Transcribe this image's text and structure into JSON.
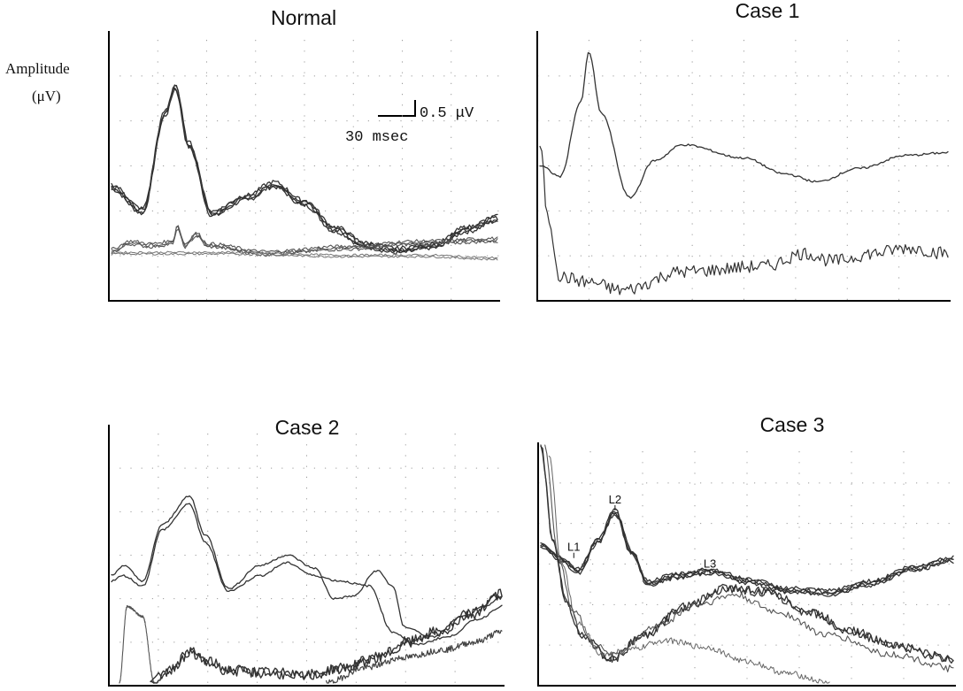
{
  "y_label": {
    "line1": "Amplitude",
    "line2": "(μV)"
  },
  "scale_bar": {
    "amplitude": "0.5  μV",
    "time": "30 msec"
  },
  "chart_data": [
    {
      "type": "line",
      "title": "Normal",
      "xlim": [
        0,
        1
      ],
      "ylim": [
        0,
        1
      ],
      "grid": true,
      "series": [
        {
          "points": [
            [
              0,
              0.42
            ],
            [
              0.08,
              0.33
            ],
            [
              0.14,
              0.7
            ],
            [
              0.165,
              0.8
            ],
            [
              0.2,
              0.58
            ],
            [
              0.26,
              0.32
            ],
            [
              0.35,
              0.38
            ],
            [
              0.42,
              0.43
            ],
            [
              0.5,
              0.36
            ],
            [
              0.58,
              0.26
            ],
            [
              0.66,
              0.2
            ],
            [
              0.74,
              0.18
            ],
            [
              0.84,
              0.2
            ],
            [
              0.92,
              0.26
            ],
            [
              1,
              0.3
            ]
          ],
          "noise": 0.008,
          "copies": 4,
          "color": "#333",
          "width": 1.3
        },
        {
          "points": [
            [
              0,
              0.18
            ],
            [
              0.05,
              0.21
            ],
            [
              0.1,
              0.2
            ],
            [
              0.16,
              0.21
            ],
            [
              0.17,
              0.27
            ],
            [
              0.19,
              0.2
            ],
            [
              0.22,
              0.24
            ],
            [
              0.25,
              0.2
            ],
            [
              0.4,
              0.17
            ],
            [
              0.6,
              0.19
            ],
            [
              0.8,
              0.21
            ],
            [
              1,
              0.22
            ]
          ],
          "noise": 0.006,
          "copies": 3,
          "color": "#555",
          "width": 1.1
        },
        {
          "points": [
            [
              0,
              0.17
            ],
            [
              0.3,
              0.17
            ],
            [
              0.6,
              0.16
            ],
            [
              0.8,
              0.16
            ],
            [
              1,
              0.15
            ]
          ],
          "noise": 0.004,
          "copies": 2,
          "color": "#777",
          "width": 1.0
        }
      ]
    },
    {
      "type": "line",
      "title": "Case 1",
      "xlim": [
        0,
        1
      ],
      "ylim": [
        0,
        1
      ],
      "grid": true,
      "series": [
        {
          "points": [
            [
              0,
              0.5
            ],
            [
              0.05,
              0.46
            ],
            [
              0.1,
              0.74
            ],
            [
              0.12,
              0.93
            ],
            [
              0.15,
              0.7
            ],
            [
              0.22,
              0.38
            ],
            [
              0.28,
              0.52
            ],
            [
              0.35,
              0.58
            ],
            [
              0.5,
              0.53
            ],
            [
              0.6,
              0.47
            ],
            [
              0.68,
              0.44
            ],
            [
              0.78,
              0.49
            ],
            [
              0.9,
              0.54
            ],
            [
              1,
              0.55
            ]
          ],
          "noise": 0.004,
          "copies": 1,
          "color": "#333",
          "width": 1.3
        },
        {
          "points": [
            [
              0,
              0.58
            ],
            [
              0.02,
              0.3
            ],
            [
              0.05,
              0.08
            ],
            [
              0.12,
              0.06
            ],
            [
              0.2,
              0.03
            ],
            [
              0.35,
              0.1
            ],
            [
              0.55,
              0.12
            ],
            [
              0.65,
              0.17
            ],
            [
              0.72,
              0.14
            ],
            [
              0.82,
              0.17
            ],
            [
              0.9,
              0.19
            ],
            [
              1,
              0.17
            ]
          ],
          "noise": 0.025,
          "copies": 1,
          "color": "#333",
          "width": 1.2
        }
      ]
    },
    {
      "type": "line",
      "title": "Case 2",
      "xlim": [
        0,
        1
      ],
      "ylim": [
        0,
        1
      ],
      "grid": true,
      "series": [
        {
          "points": [
            [
              0,
              0.42
            ],
            [
              0.03,
              0.46
            ],
            [
              0.08,
              0.4
            ],
            [
              0.13,
              0.62
            ],
            [
              0.2,
              0.73
            ],
            [
              0.24,
              0.58
            ],
            [
              0.3,
              0.37
            ],
            [
              0.38,
              0.46
            ],
            [
              0.45,
              0.5
            ],
            [
              0.52,
              0.45
            ],
            [
              0.57,
              0.33
            ],
            [
              0.62,
              0.34
            ],
            [
              0.68,
              0.44
            ],
            [
              0.72,
              0.38
            ],
            [
              0.75,
              0.22
            ],
            [
              0.82,
              0.18
            ],
            [
              0.9,
              0.26
            ],
            [
              0.96,
              0.3
            ],
            [
              1,
              0.34
            ]
          ],
          "noise": 0.004,
          "copies": 1,
          "color": "#333",
          "width": 1.3
        },
        {
          "points": [
            [
              0,
              0.4
            ],
            [
              0.03,
              0.42
            ],
            [
              0.08,
              0.38
            ],
            [
              0.13,
              0.6
            ],
            [
              0.2,
              0.7
            ],
            [
              0.24,
              0.55
            ],
            [
              0.3,
              0.36
            ],
            [
              0.38,
              0.42
            ],
            [
              0.45,
              0.47
            ],
            [
              0.52,
              0.42
            ],
            [
              0.58,
              0.4
            ],
            [
              0.66,
              0.38
            ],
            [
              0.72,
              0.2
            ],
            [
              0.78,
              0.15
            ],
            [
              0.86,
              0.18
            ],
            [
              0.94,
              0.25
            ],
            [
              1,
              0.3
            ]
          ],
          "noise": 0.004,
          "copies": 1,
          "color": "#333",
          "width": 1.3
        },
        {
          "points": [
            [
              0.02,
              0.0
            ],
            [
              0.04,
              0.3
            ],
            [
              0.08,
              0.26
            ],
            [
              0.11,
              0.0
            ]
          ],
          "noise": 0.004,
          "copies": 1,
          "color": "#555",
          "width": 1.1
        },
        {
          "points": [
            [
              0.1,
              0.0
            ],
            [
              0.15,
              0.05
            ],
            [
              0.2,
              0.12
            ],
            [
              0.25,
              0.08
            ],
            [
              0.3,
              0.05
            ],
            [
              0.4,
              0.04
            ],
            [
              0.5,
              0.03
            ],
            [
              0.6,
              0.06
            ],
            [
              0.68,
              0.1
            ],
            [
              0.76,
              0.16
            ],
            [
              0.84,
              0.2
            ],
            [
              0.92,
              0.27
            ],
            [
              1,
              0.35
            ]
          ],
          "noise": 0.02,
          "copies": 2,
          "color": "#333",
          "width": 1.4
        },
        {
          "points": [
            [
              0.55,
              0.0
            ],
            [
              0.65,
              0.06
            ],
            [
              0.75,
              0.1
            ],
            [
              0.85,
              0.13
            ],
            [
              0.93,
              0.16
            ],
            [
              1,
              0.2
            ]
          ],
          "noise": 0.012,
          "copies": 1,
          "color": "#444",
          "width": 1.2
        }
      ]
    },
    {
      "type": "line",
      "title": "Case 3",
      "xlim": [
        0,
        1
      ],
      "ylim": [
        0,
        1
      ],
      "grid": true,
      "annotations": [
        {
          "label": "L1",
          "x": 0.08,
          "y": 0.54
        },
        {
          "label": "L2",
          "x": 0.18,
          "y": 0.74
        },
        {
          "label": "L3",
          "x": 0.41,
          "y": 0.47
        }
      ],
      "series": [
        {
          "points": [
            [
              0,
              0.58
            ],
            [
              0.05,
              0.52
            ],
            [
              0.09,
              0.47
            ],
            [
              0.14,
              0.6
            ],
            [
              0.18,
              0.72
            ],
            [
              0.22,
              0.55
            ],
            [
              0.26,
              0.42
            ],
            [
              0.33,
              0.45
            ],
            [
              0.41,
              0.47
            ],
            [
              0.5,
              0.43
            ],
            [
              0.6,
              0.39
            ],
            [
              0.7,
              0.38
            ],
            [
              0.8,
              0.42
            ],
            [
              0.9,
              0.48
            ],
            [
              1,
              0.52
            ]
          ],
          "noise": 0.008,
          "copies": 4,
          "color": "#333",
          "width": 1.3
        },
        {
          "points": [
            [
              0,
              1.0
            ],
            [
              0.03,
              0.6
            ],
            [
              0.06,
              0.35
            ],
            [
              0.1,
              0.2
            ],
            [
              0.17,
              0.1
            ],
            [
              0.25,
              0.2
            ],
            [
              0.35,
              0.32
            ],
            [
              0.45,
              0.4
            ],
            [
              0.55,
              0.38
            ],
            [
              0.65,
              0.3
            ],
            [
              0.75,
              0.22
            ],
            [
              0.85,
              0.16
            ],
            [
              1,
              0.1
            ]
          ],
          "noise": 0.018,
          "copies": 2,
          "color": "#333",
          "width": 1.3
        },
        {
          "points": [
            [
              0.01,
              1.0
            ],
            [
              0.04,
              0.55
            ],
            [
              0.08,
              0.3
            ],
            [
              0.13,
              0.16
            ],
            [
              0.18,
              0.12
            ],
            [
              0.28,
              0.24
            ],
            [
              0.38,
              0.33
            ],
            [
              0.47,
              0.37
            ],
            [
              0.57,
              0.3
            ],
            [
              0.7,
              0.2
            ],
            [
              0.85,
              0.12
            ],
            [
              1,
              0.06
            ]
          ],
          "noise": 0.015,
          "copies": 1,
          "color": "#555",
          "width": 1.1
        },
        {
          "points": [
            [
              0.02,
              0.95
            ],
            [
              0.05,
              0.5
            ],
            [
              0.09,
              0.25
            ],
            [
              0.15,
              0.12
            ],
            [
              0.22,
              0.14
            ],
            [
              0.3,
              0.18
            ],
            [
              0.4,
              0.15
            ],
            [
              0.5,
              0.09
            ],
            [
              0.6,
              0.04
            ],
            [
              0.7,
              0.0
            ]
          ],
          "noise": 0.012,
          "copies": 1,
          "color": "#666",
          "width": 1.0
        }
      ]
    }
  ]
}
